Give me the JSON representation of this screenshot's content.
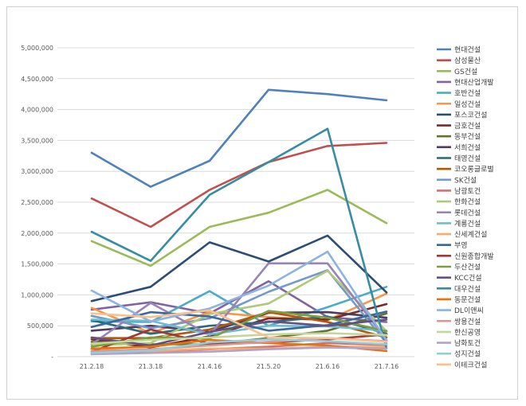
{
  "chart_data": {
    "type": "line",
    "title": "",
    "xlabel": "",
    "ylabel": "",
    "ylim": [
      0,
      5000000
    ],
    "y_ticks": [
      0,
      500000,
      1000000,
      1500000,
      2000000,
      2500000,
      3000000,
      3500000,
      4000000,
      4500000,
      5000000
    ],
    "y_tick_labels": [
      "-",
      "500,000",
      "1,000,000",
      "1,500,000",
      "2,000,000",
      "2,500,000",
      "3,000,000",
      "3,500,000",
      "4,000,000",
      "4,500,000",
      "5,000,000"
    ],
    "grid": true,
    "legend_position": "right",
    "categories": [
      "21.2.18",
      "21.3.18",
      "21.4.16",
      "21.5.20",
      "21.6.16",
      "21.7.16"
    ],
    "series": [
      {
        "name": "현대건설",
        "color": "#4f81bd",
        "values": [
          3300000,
          2750000,
          3170000,
          4320000,
          4250000,
          4150000
        ]
      },
      {
        "name": "삼성물산",
        "color": "#c0504d",
        "values": [
          2560000,
          2100000,
          2700000,
          3150000,
          3410000,
          3460000
        ]
      },
      {
        "name": "GS건설",
        "color": "#9bbb59",
        "values": [
          1870000,
          1470000,
          2100000,
          2330000,
          2700000,
          2160000
        ]
      },
      {
        "name": "현대산업개발",
        "color": "#8064a2",
        "values": [
          760000,
          880000,
          700000,
          1220000,
          640000,
          560000
        ]
      },
      {
        "name": "호반건설",
        "color": "#4bacc6",
        "values": [
          570000,
          560000,
          1060000,
          500000,
          800000,
          1130000
        ]
      },
      {
        "name": "일성건설",
        "color": "#f79646",
        "values": [
          790000,
          380000,
          720000,
          640000,
          590000,
          1020000
        ]
      },
      {
        "name": "포스코건설",
        "color": "#2c4d75",
        "values": [
          900000,
          1130000,
          1850000,
          1540000,
          1960000,
          1040000
        ]
      },
      {
        "name": "금호건설",
        "color": "#772c2a",
        "values": [
          280000,
          150000,
          330000,
          620000,
          600000,
          850000
        ]
      },
      {
        "name": "동부건설",
        "color": "#5f7530",
        "values": [
          240000,
          200000,
          200000,
          300000,
          420000,
          700000
        ]
      },
      {
        "name": "서희건설",
        "color": "#4d3b62",
        "values": [
          420000,
          500000,
          400000,
          710000,
          720000,
          630000
        ]
      },
      {
        "name": "태영건설",
        "color": "#276a7c",
        "values": [
          590000,
          370000,
          500000,
          560000,
          650000,
          370000
        ]
      },
      {
        "name": "코오롱글로벌",
        "color": "#b65708",
        "values": [
          300000,
          300000,
          440000,
          720000,
          560000,
          310000
        ]
      },
      {
        "name": "SK건설",
        "color": "#729aca",
        "values": [
          660000,
          460000,
          620000,
          1050000,
          1400000,
          220000
        ]
      },
      {
        "name": "남광토건",
        "color": "#cd7371",
        "values": [
          50000,
          80000,
          120000,
          160000,
          220000,
          190000
        ]
      },
      {
        "name": "한화건설",
        "color": "#afc97a",
        "values": [
          180000,
          220000,
          690000,
          860000,
          1390000,
          410000
        ]
      },
      {
        "name": "롯데건설",
        "color": "#9983b5",
        "values": [
          200000,
          870000,
          350000,
          1510000,
          1510000,
          270000
        ]
      },
      {
        "name": "계룡건설",
        "color": "#6fbdd1",
        "values": [
          600000,
          580000,
          360000,
          500000,
          490000,
          420000
        ]
      },
      {
        "name": "신세계건설",
        "color": "#f9ab6b",
        "values": [
          120000,
          90000,
          130000,
          130000,
          160000,
          160000
        ]
      },
      {
        "name": "부영",
        "color": "#3a679c",
        "values": [
          480000,
          720000,
          650000,
          420000,
          510000,
          730000
        ]
      },
      {
        "name": "신원종합개발",
        "color": "#9e3a38",
        "values": [
          80000,
          440000,
          210000,
          230000,
          280000,
          360000
        ]
      },
      {
        "name": "두산건설",
        "color": "#7e9c40",
        "values": [
          160000,
          310000,
          290000,
          740000,
          630000,
          410000
        ]
      },
      {
        "name": "KCC건설",
        "color": "#664f82",
        "values": [
          310000,
          180000,
          400000,
          570000,
          500000,
          600000
        ]
      },
      {
        "name": "대우건설",
        "color": "#358da4",
        "values": [
          2020000,
          1550000,
          2620000,
          3150000,
          3690000,
          130000
        ]
      },
      {
        "name": "동문건설",
        "color": "#e9720b",
        "values": [
          130000,
          160000,
          270000,
          220000,
          180000,
          90000
        ]
      },
      {
        "name": "DL이앤씨",
        "color": "#8db3e2",
        "values": [
          1070000,
          570000,
          780000,
          1150000,
          1700000,
          260000
        ]
      },
      {
        "name": "쌍용건설",
        "color": "#d99694",
        "values": [
          90000,
          120000,
          180000,
          240000,
          300000,
          250000
        ]
      },
      {
        "name": "한신공영",
        "color": "#c3d69b",
        "values": [
          210000,
          270000,
          310000,
          360000,
          380000,
          350000
        ]
      },
      {
        "name": "남화토건",
        "color": "#b3a2c7",
        "values": [
          40000,
          60000,
          80000,
          120000,
          150000,
          130000
        ]
      },
      {
        "name": "성지건설",
        "color": "#92cddc",
        "values": [
          60000,
          100000,
          230000,
          280000,
          250000,
          200000
        ]
      },
      {
        "name": "이테크건설",
        "color": "#fac090",
        "values": [
          700000,
          640000,
          750000,
          310000,
          300000,
          240000
        ]
      }
    ]
  }
}
